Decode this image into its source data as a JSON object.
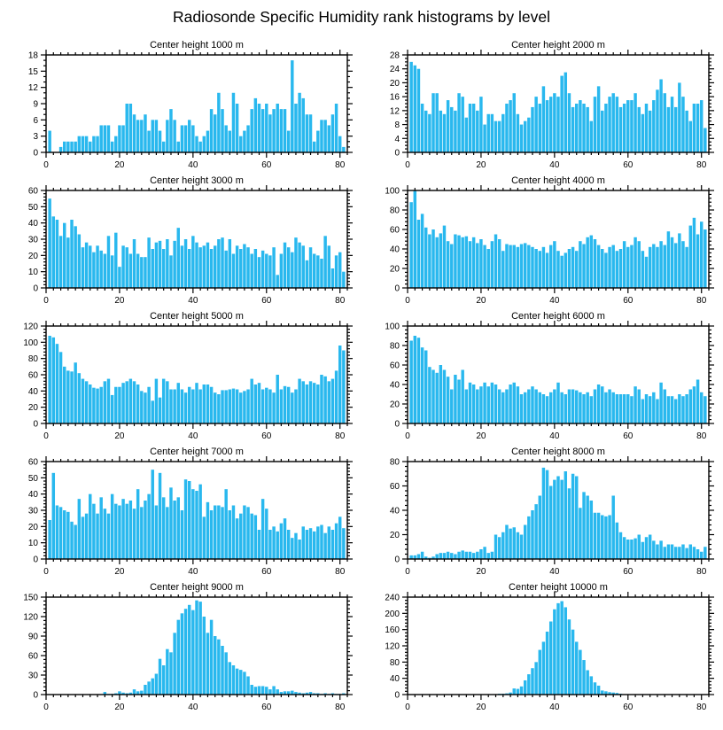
{
  "figure": {
    "title": "Radiosonde Specific Humidity rank histograms by level",
    "bar_color": "#29b8ee",
    "axis_color": "#000000"
  },
  "chart_data": [
    {
      "type": "bar",
      "title": "Center height 1000 m",
      "xlabel": "",
      "ylabel": "",
      "xlim": [
        0,
        82
      ],
      "ylim": [
        0,
        18
      ],
      "xticks": [
        0,
        20,
        40,
        60,
        80
      ],
      "xminor": 2,
      "yticks": [
        0,
        3,
        6,
        9,
        12,
        15,
        18
      ],
      "yminor": 1,
      "values": [
        4,
        0,
        0,
        1,
        2,
        2,
        2,
        2,
        3,
        3,
        3,
        2,
        3,
        3,
        5,
        5,
        5,
        2,
        3,
        5,
        5,
        9,
        9,
        7,
        6,
        6,
        7,
        4,
        6,
        6,
        4,
        2,
        6,
        8,
        6,
        2,
        5,
        5,
        6,
        5,
        3,
        2,
        3,
        4,
        8,
        7,
        11,
        8,
        5,
        4,
        11,
        9,
        3,
        4,
        5,
        8,
        10,
        9,
        8,
        9,
        7,
        8,
        9,
        8,
        8,
        4,
        17,
        9,
        11,
        10,
        7,
        7,
        2,
        4,
        6,
        6,
        5,
        7,
        9,
        3,
        1
      ]
    },
    {
      "type": "bar",
      "title": "Center height 2000 m",
      "xlabel": "",
      "ylabel": "",
      "xlim": [
        0,
        82
      ],
      "ylim": [
        0,
        28
      ],
      "xticks": [
        0,
        20,
        40,
        60,
        80
      ],
      "xminor": 2,
      "yticks": [
        0,
        4,
        8,
        12,
        16,
        20,
        24,
        28
      ],
      "yminor": 1,
      "values": [
        26,
        25,
        24,
        14,
        12,
        11,
        17,
        17,
        12,
        11,
        15,
        13,
        12,
        17,
        16,
        10,
        14,
        14,
        12,
        16,
        8,
        11,
        11,
        9,
        9,
        11,
        14,
        15,
        17,
        11,
        8,
        9,
        10,
        13,
        16,
        14,
        19,
        15,
        16,
        17,
        16,
        22,
        23,
        17,
        13,
        14,
        15,
        14,
        13,
        9,
        16,
        19,
        12,
        14,
        16,
        17,
        16,
        13,
        14,
        15,
        15,
        17,
        13,
        11,
        14,
        12,
        15,
        18,
        21,
        17,
        13,
        16,
        13,
        20,
        16,
        12,
        9,
        14,
        14,
        15,
        7
      ]
    },
    {
      "type": "bar",
      "title": "Center height 3000 m",
      "xlabel": "",
      "ylabel": "",
      "xlim": [
        0,
        82
      ],
      "ylim": [
        0,
        60
      ],
      "xticks": [
        0,
        20,
        40,
        60,
        80
      ],
      "xminor": 2,
      "yticks": [
        0,
        10,
        20,
        30,
        40,
        50,
        60
      ],
      "yminor": 2,
      "values": [
        55,
        44,
        42,
        32,
        40,
        31,
        42,
        38,
        33,
        25,
        28,
        26,
        22,
        26,
        23,
        21,
        32,
        20,
        34,
        13,
        26,
        25,
        21,
        30,
        21,
        19,
        19,
        31,
        24,
        28,
        29,
        24,
        30,
        20,
        29,
        37,
        26,
        30,
        24,
        32,
        28,
        25,
        26,
        28,
        24,
        26,
        30,
        31,
        23,
        30,
        21,
        26,
        24,
        27,
        25,
        21,
        24,
        19,
        23,
        21,
        20,
        25,
        8,
        21,
        28,
        25,
        22,
        31,
        28,
        26,
        17,
        25,
        21,
        20,
        18,
        32,
        26,
        12,
        20,
        22,
        10
      ]
    },
    {
      "type": "bar",
      "title": "Center height 4000 m",
      "xlabel": "",
      "ylabel": "",
      "xlim": [
        0,
        82
      ],
      "ylim": [
        0,
        100
      ],
      "xticks": [
        0,
        20,
        40,
        60,
        80
      ],
      "xminor": 2,
      "yticks": [
        0,
        20,
        40,
        60,
        80,
        100
      ],
      "yminor": 4,
      "values": [
        88,
        100,
        70,
        76,
        62,
        55,
        60,
        52,
        56,
        64,
        48,
        45,
        55,
        54,
        52,
        53,
        48,
        52,
        46,
        50,
        44,
        40,
        48,
        55,
        50,
        38,
        45,
        44,
        44,
        42,
        45,
        46,
        44,
        42,
        40,
        38,
        42,
        36,
        44,
        48,
        38,
        33,
        36,
        40,
        42,
        38,
        48,
        45,
        52,
        54,
        50,
        44,
        40,
        36,
        42,
        44,
        38,
        40,
        48,
        42,
        44,
        52,
        48,
        38,
        32,
        42,
        45,
        42,
        48,
        44,
        58,
        52,
        46,
        56,
        48,
        42,
        64,
        72,
        55,
        68,
        60
      ]
    },
    {
      "type": "bar",
      "title": "Center height 5000 m",
      "xlabel": "",
      "ylabel": "",
      "xlim": [
        0,
        82
      ],
      "ylim": [
        0,
        120
      ],
      "xticks": [
        0,
        20,
        40,
        60,
        80
      ],
      "xminor": 2,
      "yticks": [
        0,
        20,
        40,
        60,
        80,
        100,
        120
      ],
      "yminor": 4,
      "values": [
        108,
        106,
        98,
        88,
        70,
        65,
        64,
        75,
        62,
        55,
        52,
        48,
        44,
        43,
        45,
        52,
        55,
        35,
        45,
        45,
        50,
        52,
        55,
        52,
        48,
        40,
        38,
        45,
        28,
        55,
        32,
        55,
        52,
        42,
        42,
        50,
        42,
        38,
        45,
        42,
        50,
        42,
        48,
        48,
        45,
        38,
        36,
        41,
        41,
        42,
        43,
        42,
        38,
        40,
        42,
        55,
        48,
        50,
        42,
        44,
        42,
        38,
        60,
        42,
        46,
        45,
        38,
        42,
        55,
        52,
        48,
        52,
        50,
        48,
        60,
        58,
        52,
        55,
        65,
        96,
        90
      ]
    },
    {
      "type": "bar",
      "title": "Center height 6000 m",
      "xlabel": "",
      "ylabel": "",
      "xlim": [
        0,
        82
      ],
      "ylim": [
        0,
        100
      ],
      "xticks": [
        0,
        20,
        40,
        60,
        80
      ],
      "xminor": 2,
      "yticks": [
        0,
        20,
        40,
        60,
        80,
        100
      ],
      "yminor": 4,
      "values": [
        85,
        90,
        88,
        78,
        75,
        58,
        55,
        52,
        60,
        55,
        48,
        35,
        50,
        45,
        55,
        35,
        42,
        40,
        35,
        38,
        42,
        38,
        42,
        40,
        35,
        32,
        35,
        40,
        42,
        38,
        30,
        32,
        35,
        38,
        35,
        32,
        30,
        28,
        32,
        35,
        42,
        32,
        30,
        35,
        35,
        34,
        32,
        30,
        32,
        28,
        35,
        40,
        38,
        32,
        35,
        32,
        30,
        30,
        30,
        30,
        28,
        38,
        35,
        25,
        30,
        28,
        32,
        25,
        42,
        35,
        28,
        28,
        25,
        30,
        28,
        30,
        35,
        38,
        45,
        32,
        28
      ]
    },
    {
      "type": "bar",
      "title": "Center height 7000 m",
      "xlabel": "",
      "ylabel": "",
      "xlim": [
        0,
        82
      ],
      "ylim": [
        0,
        60
      ],
      "xticks": [
        0,
        20,
        40,
        60,
        80
      ],
      "xminor": 2,
      "yticks": [
        0,
        10,
        20,
        30,
        40,
        50,
        60
      ],
      "yminor": 2,
      "values": [
        24,
        53,
        33,
        32,
        30,
        29,
        23,
        21,
        37,
        26,
        28,
        40,
        34,
        28,
        38,
        31,
        28,
        40,
        34,
        33,
        37,
        34,
        36,
        31,
        43,
        32,
        36,
        40,
        55,
        33,
        53,
        38,
        32,
        44,
        36,
        38,
        30,
        49,
        48,
        43,
        42,
        46,
        26,
        35,
        30,
        33,
        33,
        32,
        43,
        30,
        33,
        25,
        28,
        33,
        32,
        28,
        27,
        18,
        37,
        31,
        18,
        20,
        17,
        22,
        25,
        18,
        13,
        16,
        12,
        20,
        18,
        19,
        17,
        20,
        21,
        16,
        20,
        18,
        22,
        26,
        19
      ]
    },
    {
      "type": "bar",
      "title": "Center height 8000 m",
      "xlabel": "",
      "ylabel": "",
      "xlim": [
        0,
        82
      ],
      "ylim": [
        0,
        80
      ],
      "xticks": [
        0,
        20,
        40,
        60,
        80
      ],
      "xminor": 2,
      "yticks": [
        0,
        20,
        40,
        60,
        80
      ],
      "yminor": 4,
      "values": [
        3,
        3,
        4,
        6,
        2,
        1,
        2,
        4,
        5,
        5,
        6,
        5,
        4,
        6,
        7,
        6,
        6,
        5,
        6,
        8,
        10,
        5,
        6,
        20,
        18,
        22,
        28,
        25,
        26,
        22,
        20,
        28,
        35,
        40,
        45,
        52,
        75,
        73,
        60,
        65,
        68,
        65,
        72,
        58,
        70,
        68,
        42,
        55,
        52,
        48,
        38,
        38,
        36,
        35,
        36,
        52,
        30,
        22,
        18,
        16,
        16,
        17,
        20,
        14,
        18,
        20,
        15,
        12,
        15,
        10,
        12,
        12,
        10,
        10,
        12,
        9,
        12,
        10,
        8,
        6,
        10
      ]
    },
    {
      "type": "bar",
      "title": "Center height 9000 m",
      "xlabel": "",
      "ylabel": "",
      "xlim": [
        0,
        82
      ],
      "ylim": [
        0,
        150
      ],
      "xticks": [
        0,
        20,
        40,
        60,
        80
      ],
      "xminor": 2,
      "yticks": [
        0,
        30,
        60,
        90,
        120,
        150
      ],
      "yminor": 6,
      "values": [
        0,
        0,
        0,
        0,
        0,
        0,
        0,
        0,
        0,
        0,
        0,
        0,
        0,
        0,
        0,
        4,
        1,
        1,
        2,
        5,
        3,
        2,
        3,
        8,
        5,
        6,
        15,
        20,
        25,
        32,
        55,
        45,
        70,
        65,
        95,
        115,
        125,
        132,
        138,
        130,
        145,
        143,
        120,
        95,
        115,
        90,
        85,
        75,
        65,
        50,
        45,
        40,
        38,
        35,
        28,
        15,
        12,
        13,
        13,
        12,
        8,
        13,
        8,
        4,
        5,
        5,
        6,
        4,
        3,
        2,
        3,
        4,
        2,
        2,
        1,
        2,
        1,
        2,
        1,
        1,
        2
      ]
    },
    {
      "type": "bar",
      "title": "Center height 10000 m",
      "xlabel": "",
      "ylabel": "",
      "xlim": [
        0,
        82
      ],
      "ylim": [
        0,
        240
      ],
      "xticks": [
        0,
        20,
        40,
        60,
        80
      ],
      "xminor": 2,
      "yticks": [
        0,
        40,
        80,
        120,
        160,
        200,
        240
      ],
      "yminor": 8,
      "values": [
        0,
        0,
        0,
        0,
        0,
        0,
        0,
        0,
        0,
        0,
        0,
        0,
        0,
        0,
        0,
        0,
        0,
        0,
        0,
        0,
        0,
        0,
        1,
        1,
        2,
        2,
        3,
        5,
        15,
        14,
        20,
        35,
        50,
        65,
        80,
        110,
        130,
        155,
        180,
        210,
        225,
        230,
        215,
        185,
        160,
        130,
        110,
        85,
        60,
        45,
        30,
        22,
        10,
        8,
        6,
        5,
        4,
        2,
        1,
        1,
        0,
        0,
        1,
        0,
        0,
        0,
        0,
        0,
        0,
        0,
        0,
        0,
        0,
        0,
        0,
        0,
        0,
        0,
        0,
        0,
        0
      ]
    }
  ]
}
